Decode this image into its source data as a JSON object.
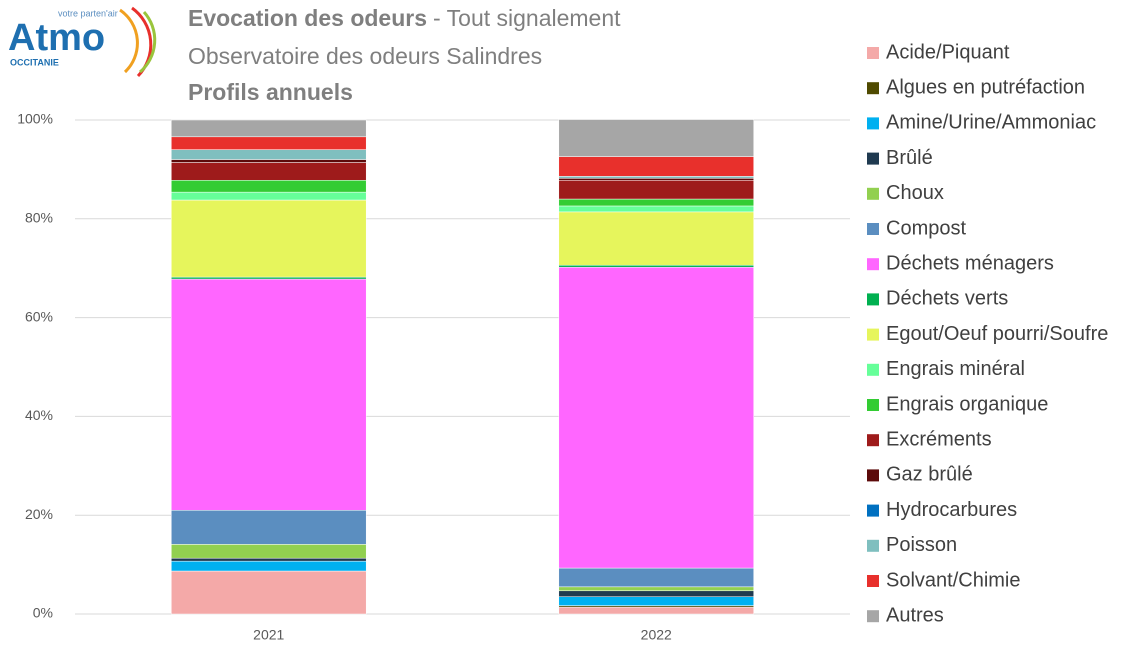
{
  "logo": {
    "brand": "Atmo",
    "region": "OCCITANIE",
    "tagline": "votre parten'air"
  },
  "chart_data": {
    "type": "stacked_bar",
    "title": "Evocation des odeurs",
    "title_suffix": "- Tout signalement",
    "subtitle": "Observatoire des odeurs Salindres",
    "subtitle2": "Profils annuels",
    "categories": [
      "2021",
      "2022"
    ],
    "ylim": [
      0,
      100
    ],
    "yticks": [
      {
        "value": 0,
        "label": "0%"
      },
      {
        "value": 20,
        "label": "20%"
      },
      {
        "value": 40,
        "label": "40%"
      },
      {
        "value": 60,
        "label": "60%"
      },
      {
        "value": 80,
        "label": "80%"
      },
      {
        "value": 100,
        "label": "100%"
      }
    ],
    "grid": true,
    "legend": "right",
    "series": [
      {
        "name": "Acide/Piquant",
        "color": "#f4a9a8",
        "values": [
          8.7,
          1.4
        ]
      },
      {
        "name": "Algues en putréfaction",
        "color": "#4f4a00",
        "values": [
          0,
          0.3
        ]
      },
      {
        "name": "Amine/Urine/Ammoniac",
        "color": "#00b0f0",
        "values": [
          2.0,
          1.8
        ]
      },
      {
        "name": "Brûlé",
        "color": "#1f3a50",
        "values": [
          0.6,
          1.2
        ]
      },
      {
        "name": "Choux",
        "color": "#92d050",
        "values": [
          2.8,
          0.8
        ]
      },
      {
        "name": "Compost",
        "color": "#5b8ec0",
        "values": [
          6.9,
          3.8
        ]
      },
      {
        "name": "Déchets ménagers",
        "color": "#ff66ff",
        "values": [
          46.8,
          60.9
        ]
      },
      {
        "name": "Déchets verts",
        "color": "#00b050",
        "values": [
          0.4,
          0.4
        ]
      },
      {
        "name": "Egout/Oeuf pourri/Soufre",
        "color": "#e6f55c",
        "values": [
          15.6,
          10.8
        ]
      },
      {
        "name": "Engrais minéral",
        "color": "#66ff99",
        "values": [
          1.6,
          1.2
        ]
      },
      {
        "name": "Engrais organique",
        "color": "#33cc33",
        "values": [
          2.4,
          1.4
        ]
      },
      {
        "name": "Excréments",
        "color": "#9e1b1b",
        "values": [
          3.6,
          3.8
        ]
      },
      {
        "name": "Gaz brûlé",
        "color": "#5c0a0a",
        "values": [
          0.6,
          0.4
        ]
      },
      {
        "name": "Hydrocarbures",
        "color": "#0070c0",
        "values": [
          0,
          0
        ]
      },
      {
        "name": "Poisson",
        "color": "#7fbfbf",
        "values": [
          2.0,
          0.4
        ]
      },
      {
        "name": "Solvant/Chimie",
        "color": "#e8302c",
        "values": [
          2.6,
          4.0
        ]
      },
      {
        "name": "Autres",
        "color": "#a6a6a6",
        "values": [
          3.4,
          7.5
        ]
      }
    ]
  }
}
